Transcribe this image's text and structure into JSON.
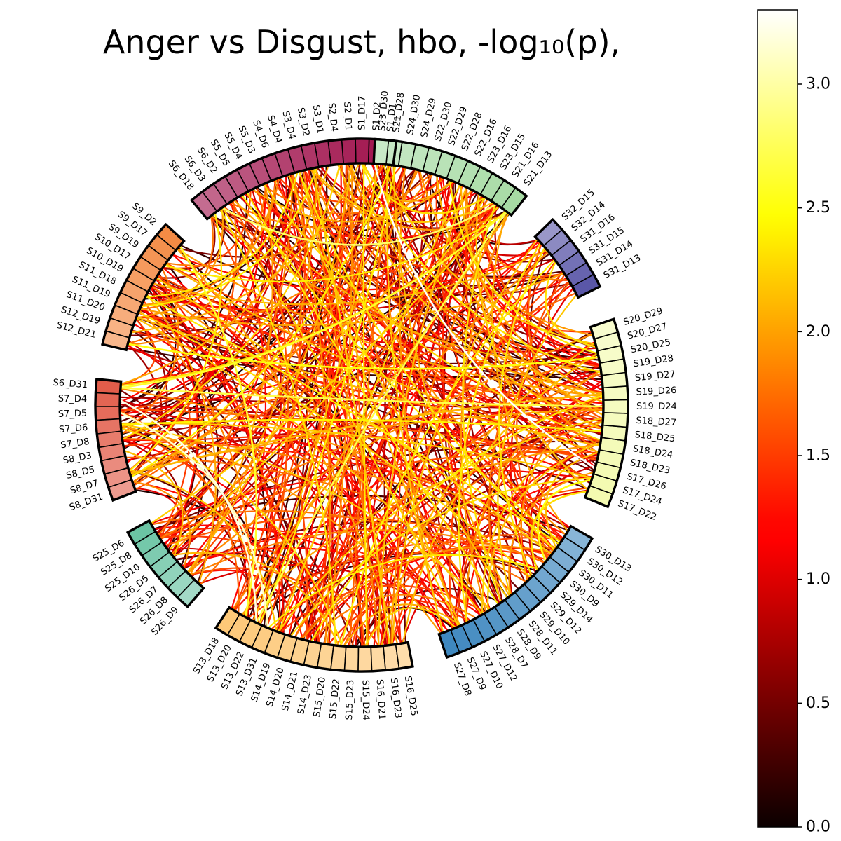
{
  "chart_data": {
    "type": "chord",
    "title": "Anger vs Disgust, hbo, -log₁₀(p),",
    "groups": [
      {
        "name": "group-1",
        "color": "#a0124c",
        "nodes": [
          "S1_D1",
          "S1_D2",
          "S1_D17",
          "S2_D1",
          "S2_D4",
          "S3_D1",
          "S3_D2",
          "S3_D4",
          "S4_D4",
          "S4_D6",
          "S5_D3",
          "S5_D4",
          "S5_D5",
          "S6_D2",
          "S6_D3",
          "S6_D18"
        ]
      },
      {
        "name": "group-2",
        "color": "#f48b45",
        "nodes": [
          "S9_D2",
          "S9_D17",
          "S9_D19",
          "S10_D17",
          "S10_D19",
          "S11_D18",
          "S11_D19",
          "S11_D20",
          "S12_D19",
          "S12_D21"
        ]
      },
      {
        "name": "group-3",
        "color": "#e25d4a",
        "nodes": [
          "S6_D31",
          "S7_D4",
          "S7_D5",
          "S7_D6",
          "S7_D8",
          "S8_D3",
          "S8_D5",
          "S8_D7",
          "S8_D31"
        ]
      },
      {
        "name": "group-4",
        "color": "#6bc4a4",
        "nodes": [
          "S25_D6",
          "S25_D8",
          "S25_D10",
          "S26_D5",
          "S26_D7",
          "S26_D8",
          "S26_D9"
        ]
      },
      {
        "name": "group-5",
        "color": "#fdc878",
        "nodes": [
          "S13_D18",
          "S13_D20",
          "S13_D22",
          "S13_D31",
          "S14_D19",
          "S14_D20",
          "S14_D21",
          "S14_D23",
          "S15_D20",
          "S15_D22",
          "S15_D23",
          "S15_D24",
          "S16_D21",
          "S16_D23",
          "S16_D25"
        ]
      },
      {
        "name": "group-6",
        "color": "#3f88bf",
        "nodes": [
          "S27_D8",
          "S27_D9",
          "S27_D10",
          "S27_D12",
          "S28_D7",
          "S28_D9",
          "S28_D11",
          "S29_D10",
          "S29_D12",
          "S29_D14",
          "S30_D9",
          "S30_D11",
          "S30_D12",
          "S30_D13"
        ]
      },
      {
        "name": "group-7",
        "color": "#f3fab0",
        "nodes": [
          "S17_D22",
          "S17_D24",
          "S17_D26",
          "S18_D23",
          "S18_D24",
          "S18_D25",
          "S18_D27",
          "S19_D24",
          "S19_D26",
          "S19_D27",
          "S19_D28",
          "S20_D25",
          "S20_D27",
          "S20_D29"
        ]
      },
      {
        "name": "group-8",
        "color": "#5a57a8",
        "nodes": [
          "S31_D13",
          "S31_D14",
          "S31_D15",
          "S31_D16",
          "S32_D14",
          "S32_D15"
        ]
      },
      {
        "name": "group-9",
        "color": "#a7dba4",
        "nodes": [
          "S21_D13",
          "S21_D16",
          "S23_D15",
          "S23_D16",
          "S22_D16",
          "S22_D28",
          "S22_D29",
          "S22_D30",
          "S24_D29",
          "S24_D30",
          "S21_D28",
          "S23_D30"
        ]
      }
    ],
    "value_scale": {
      "label": "-log₁₀(p)",
      "min": 0.0,
      "max": 3.3,
      "colormap": "hot"
    },
    "colorbar": {
      "ticks": [
        0.0,
        0.5,
        1.0,
        1.5,
        2.0,
        2.5,
        3.0
      ],
      "tick_labels": [
        "0.0",
        "0.5",
        "1.0",
        "1.5",
        "2.0",
        "2.5",
        "3.0"
      ]
    },
    "highlighted_links": [
      {
        "source": "S1_D2",
        "target": "S17_D26",
        "value": 3.3
      },
      {
        "source": "S7_D4",
        "target": "S13_D22",
        "value": 3.2
      },
      {
        "source": "S7_D5",
        "target": "S13_D31",
        "value": 3.1
      },
      {
        "source": "S21_D16",
        "target": "S6_D3",
        "value": 2.8
      },
      {
        "source": "S21_D13",
        "target": "S13_D22",
        "value": 2.7
      },
      {
        "source": "S6_D31",
        "target": "S19_D24",
        "value": 2.7
      },
      {
        "source": "S6_D31",
        "target": "S21_D13",
        "value": 2.6
      },
      {
        "source": "S9_D2",
        "target": "S13_D20",
        "value": 2.6
      },
      {
        "source": "S30_D9",
        "target": "S17_D24",
        "value": 2.5
      },
      {
        "source": "S20_D25",
        "target": "S12_D21",
        "value": 2.5
      },
      {
        "source": "S18_D25",
        "target": "S7_D6",
        "value": 2.4
      },
      {
        "source": "S1_D17",
        "target": "S23_D15",
        "value": 2.3
      },
      {
        "source": "S29_D14",
        "target": "S17_D22",
        "value": 2.3
      },
      {
        "source": "S3_D2",
        "target": "S16_D23",
        "value": 2.2
      },
      {
        "source": "S8_D7",
        "target": "S19_D26",
        "value": 2.1
      }
    ],
    "background_links": {
      "count": 420,
      "value_range": [
        0.0,
        2.4
      ],
      "seed": 20240607
    }
  }
}
